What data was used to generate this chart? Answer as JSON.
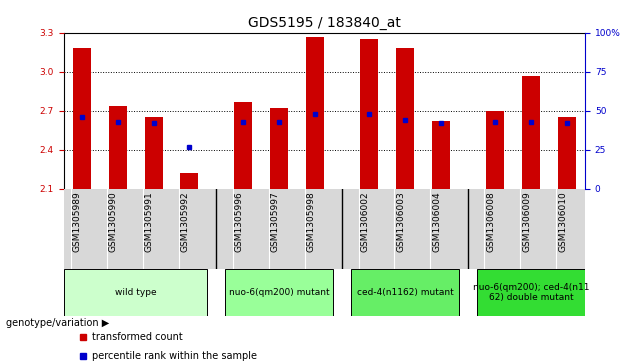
{
  "title": "GDS5195 / 183840_at",
  "samples": [
    "GSM1305989",
    "GSM1305990",
    "GSM1305991",
    "GSM1305992",
    "GSM1305996",
    "GSM1305997",
    "GSM1305998",
    "GSM1306002",
    "GSM1306003",
    "GSM1306004",
    "GSM1306008",
    "GSM1306009",
    "GSM1306010"
  ],
  "bar_values": [
    3.18,
    2.74,
    2.65,
    2.22,
    2.77,
    2.72,
    3.27,
    3.25,
    3.18,
    2.62,
    2.7,
    2.97,
    2.65
  ],
  "percentile_values": [
    46,
    43,
    42,
    27,
    43,
    43,
    48,
    48,
    44,
    42,
    43,
    43,
    42
  ],
  "ymin": 2.1,
  "ymax": 3.3,
  "yright_min": 0,
  "yright_max": 100,
  "bar_color": "#cc0000",
  "percentile_color": "#0000cc",
  "bar_bottom": 2.1,
  "group_defs": [
    {
      "label": "wild type",
      "indices": [
        0,
        1,
        2,
        3
      ],
      "color": "#ccffcc"
    },
    {
      "label": "nuo-6(qm200) mutant",
      "indices": [
        4,
        5,
        6
      ],
      "color": "#99ff99"
    },
    {
      "label": "ced-4(n1162) mutant",
      "indices": [
        7,
        8,
        9
      ],
      "color": "#66ee66"
    },
    {
      "label": "nuo-6(qm200); ced-4(n11\n62) double mutant",
      "indices": [
        10,
        11,
        12
      ],
      "color": "#33dd33"
    }
  ],
  "yticks_left": [
    2.1,
    2.4,
    2.7,
    3.0,
    3.3
  ],
  "yticks_right": [
    0,
    25,
    50,
    75,
    100
  ],
  "legend_items": [
    {
      "label": "transformed count",
      "color": "#cc0000",
      "marker": "s"
    },
    {
      "label": "percentile rank within the sample",
      "color": "#0000cc",
      "marker": "s"
    }
  ],
  "genotype_label": "genotype/variation",
  "title_fontsize": 10,
  "tick_fontsize": 6.5,
  "bar_width": 0.5,
  "x_positions": [
    0,
    1,
    2,
    3,
    4.5,
    5.5,
    6.5,
    8,
    9,
    10,
    11.5,
    12.5,
    13.5
  ]
}
